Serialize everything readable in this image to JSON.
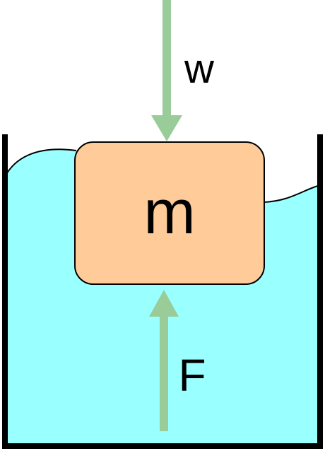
{
  "labels": {
    "weight": "w",
    "mass": "m",
    "buoyant_force": "F"
  },
  "colors": {
    "water": "#99ffff",
    "block_fill": "#ffcc99",
    "arrow": "#99cc99",
    "container": "#000000",
    "outline": "#000000"
  }
}
